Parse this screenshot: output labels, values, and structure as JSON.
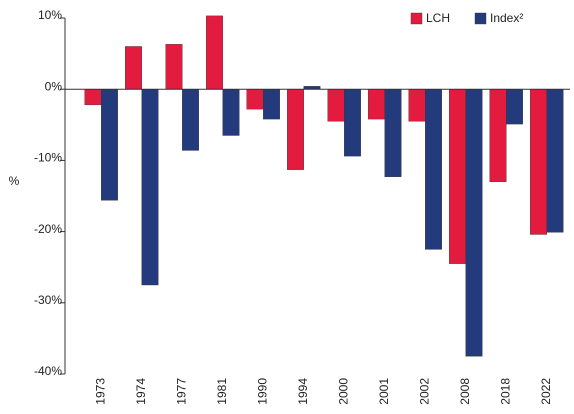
{
  "chart_data": {
    "type": "bar",
    "y_label": "%",
    "categories": [
      "1973",
      "1974",
      "1977",
      "1981",
      "1990",
      "1994",
      "2000",
      "2001",
      "2002",
      "2008",
      "2018",
      "2022"
    ],
    "series": [
      {
        "name": "LCH",
        "color": "#e31b3f",
        "values": [
          -2.2,
          6.0,
          6.3,
          10.3,
          -2.8,
          -11.3,
          -4.5,
          -4.2,
          -4.5,
          -24.5,
          -13.0,
          -20.4
        ]
      },
      {
        "name": "Index²",
        "color": "#233b7d",
        "values": [
          -15.6,
          -27.5,
          -8.6,
          -6.5,
          -4.2,
          0.4,
          -9.4,
          -12.3,
          -22.5,
          -37.5,
          -4.9,
          -20.1
        ]
      }
    ],
    "ylim": [
      -40,
      10
    ],
    "yticks": [
      {
        "value": 10,
        "label": "10%"
      },
      {
        "value": 0,
        "label": "0%"
      },
      {
        "value": -10,
        "label": "-10%"
      },
      {
        "value": -20,
        "label": "-20%"
      },
      {
        "value": -30,
        "label": "-30%"
      },
      {
        "value": -40,
        "label": "-40%"
      }
    ],
    "legend": "upper right"
  }
}
